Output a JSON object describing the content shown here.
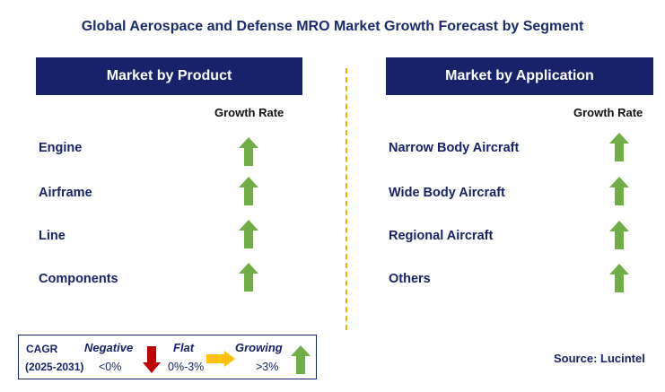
{
  "title": "Global Aerospace and Defense MRO Market Growth Forecast by Segment",
  "left_panel": {
    "header": "Market by Product",
    "growth_rate_label": "Growth Rate",
    "items": [
      {
        "label": "Engine",
        "trend": "growing"
      },
      {
        "label": "Airframe",
        "trend": "growing"
      },
      {
        "label": "Line",
        "trend": "growing"
      },
      {
        "label": "Components",
        "trend": "growing"
      }
    ]
  },
  "right_panel": {
    "header": "Market by Application",
    "growth_rate_label": "Growth Rate",
    "items": [
      {
        "label": "Narrow Body Aircraft",
        "trend": "growing"
      },
      {
        "label": "Wide Body Aircraft",
        "trend": "growing"
      },
      {
        "label": "Regional Aircraft",
        "trend": "growing"
      },
      {
        "label": "Others",
        "trend": "growing"
      }
    ]
  },
  "legend": {
    "cagr_label": "CAGR",
    "period": "(2025-2031)",
    "negative": {
      "label": "Negative",
      "range": "<0%",
      "icon": "down-arrow-icon",
      "color": "#c00000"
    },
    "flat": {
      "label": "Flat",
      "range": "0%-3%",
      "icon": "right-arrow-icon",
      "color": "#ffc000"
    },
    "growing": {
      "label": "Growing",
      "range": ">3%",
      "icon": "up-arrow-icon",
      "color": "#70ad47"
    }
  },
  "source": "Source: Lucintel",
  "colors": {
    "header_bg": "#17226a",
    "text_navy": "#17226a",
    "divider": "#f0b400",
    "growing": "#70ad47"
  }
}
